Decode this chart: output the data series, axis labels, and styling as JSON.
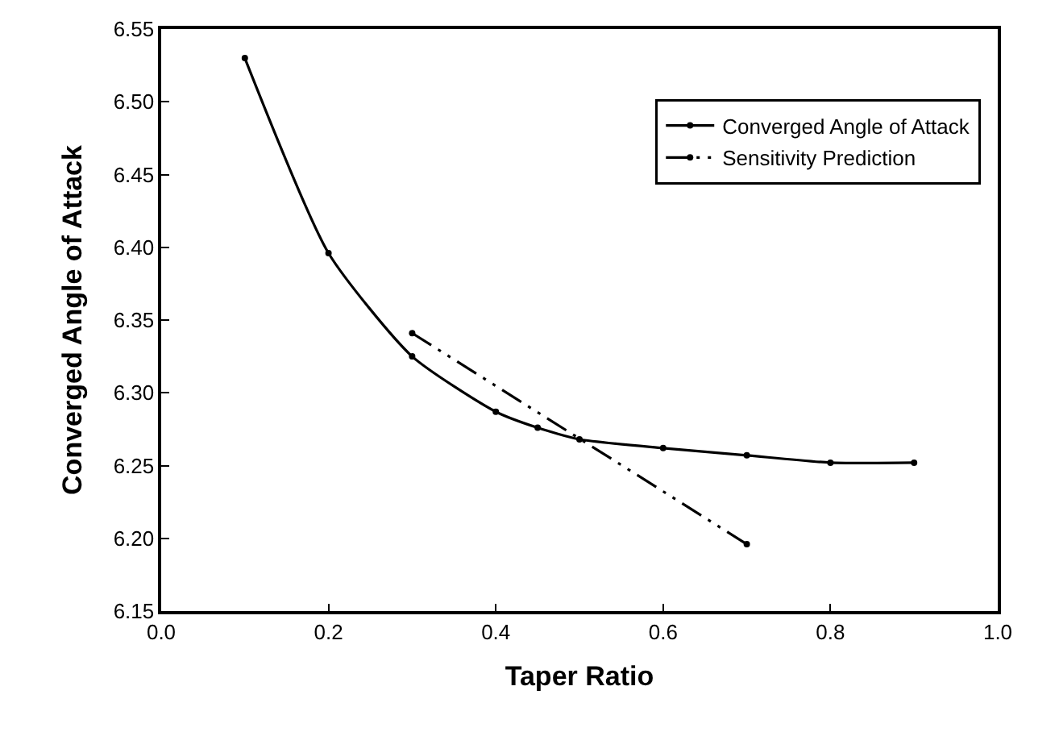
{
  "chart_data": {
    "type": "line",
    "xlabel": "Taper Ratio",
    "ylabel": "Converged Angle of Attack",
    "xlim": [
      0,
      1
    ],
    "ylim": [
      6.15,
      6.55
    ],
    "xticks": [
      {
        "value": 0,
        "label": "0.0"
      },
      0.2,
      0.4,
      0.6,
      0.8,
      {
        "value": 1,
        "label": "1.0"
      }
    ],
    "yticks": [
      6.15,
      {
        "value": 6.2,
        "label": "6.20"
      },
      6.25,
      {
        "value": 6.3,
        "label": "6.30"
      },
      6.35,
      {
        "value": 6.4,
        "label": "6.40"
      },
      6.45,
      {
        "value": 6.5,
        "label": "6.50"
      },
      6.55
    ],
    "legend": "top right",
    "marker": "circle",
    "series": [
      {
        "name": "Converged Angle of Attack",
        "color": "#000000",
        "line_style": "solid",
        "x": [
          0.1,
          0.2,
          0.3,
          0.4,
          0.45,
          0.5,
          0.6,
          0.7,
          0.8,
          0.9
        ],
        "values": [
          6.53,
          6.396,
          6.325,
          6.287,
          6.276,
          6.268,
          6.262,
          6.257,
          6.252,
          6.252
        ]
      },
      {
        "name": "Sensitivity Prediction",
        "color": "#000000",
        "line_style": "dashed",
        "x": [
          0.3,
          0.7
        ],
        "values": [
          6.341,
          6.196
        ]
      }
    ]
  }
}
